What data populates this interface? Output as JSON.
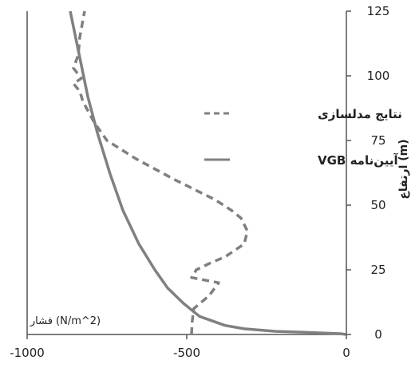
{
  "chart_data": {
    "type": "line",
    "title": "",
    "xlabel": "فشار (N/m^2)",
    "ylabel": "ارتفاع (m)",
    "xlim": [
      -1000,
      0
    ],
    "ylim": [
      0,
      125
    ],
    "x_ticks": [
      "-1000",
      "-500",
      "0"
    ],
    "y_ticks": [
      "0",
      "25",
      "50",
      "75",
      "100",
      "125"
    ],
    "y_axis_side": "right",
    "grid": false,
    "legend_position": "right",
    "series": [
      {
        "name": "نتایج مدلسازی",
        "style": "dashed",
        "color": "#808080",
        "points": [
          [
            -485,
            0
          ],
          [
            -483,
            5
          ],
          [
            -478,
            10
          ],
          [
            -430,
            15
          ],
          [
            -400,
            20
          ],
          [
            -485,
            22
          ],
          [
            -470,
            25
          ],
          [
            -420,
            28
          ],
          [
            -380,
            30
          ],
          [
            -320,
            35
          ],
          [
            -310,
            40
          ],
          [
            -330,
            45
          ],
          [
            -360,
            48
          ],
          [
            -410,
            52
          ],
          [
            -540,
            60
          ],
          [
            -660,
            68
          ],
          [
            -750,
            75
          ],
          [
            -790,
            82
          ],
          [
            -825,
            90
          ],
          [
            -835,
            94
          ],
          [
            -855,
            97
          ],
          [
            -830,
            99
          ],
          [
            -855,
            103
          ],
          [
            -840,
            108
          ],
          [
            -835,
            115
          ],
          [
            -820,
            125
          ]
        ]
      },
      {
        "name": "آیین‌نامه VGB",
        "style": "solid",
        "color": "#808080",
        "points": [
          [
            0,
            0
          ],
          [
            -20,
            0.3
          ],
          [
            -100,
            0.7
          ],
          [
            -220,
            1.2
          ],
          [
            -320,
            2.2
          ],
          [
            -380,
            3.5
          ],
          [
            -460,
            7
          ],
          [
            -510,
            12
          ],
          [
            -560,
            18
          ],
          [
            -600,
            25
          ],
          [
            -650,
            35
          ],
          [
            -700,
            48
          ],
          [
            -740,
            62
          ],
          [
            -780,
            78
          ],
          [
            -810,
            92
          ],
          [
            -840,
            110
          ],
          [
            -865,
            125
          ]
        ]
      }
    ]
  }
}
